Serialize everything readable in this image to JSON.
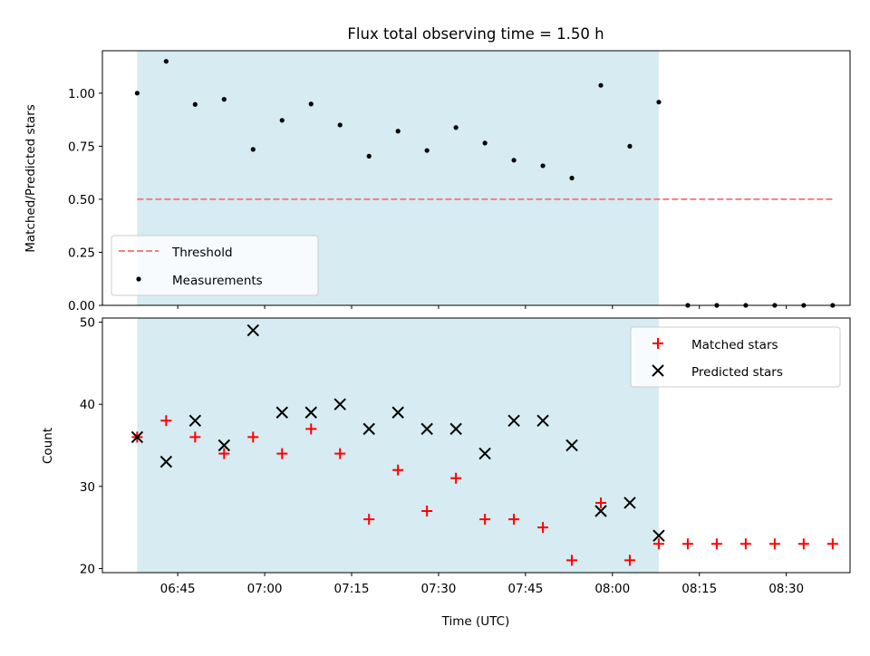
{
  "chart_data": [
    {
      "type": "scatter",
      "title": "Flux total observing time = 1.50 h",
      "ylabel": "Matched/Predicted stars",
      "xlabel": "",
      "ylim": [
        0,
        1.2
      ],
      "xlim": [
        "06:32",
        "08:41"
      ],
      "yticks": [
        0,
        0.25,
        0.5,
        0.75,
        1.0
      ],
      "ytick_labels": [
        "0.00",
        "0.25",
        "0.50",
        "0.75",
        "1.00"
      ],
      "shaded_span": [
        "06:38",
        "08:08"
      ],
      "shade_color": "#add8e6",
      "legend_location": "lower-left",
      "series": [
        {
          "name": "Threshold",
          "kind": "dashed-line",
          "color": "#f08080",
          "x": [
            "06:38",
            "08:38"
          ],
          "y": [
            0.5,
            0.5
          ]
        },
        {
          "name": "Measurements",
          "kind": "dot",
          "color": "#000000",
          "x": [
            "06:38",
            "06:43",
            "06:48",
            "06:53",
            "06:58",
            "07:03",
            "07:08",
            "07:13",
            "07:18",
            "07:23",
            "07:28",
            "07:33",
            "07:38",
            "07:43",
            "07:48",
            "07:53",
            "07:58",
            "08:03",
            "08:08",
            "08:13",
            "08:18",
            "08:23",
            "08:28",
            "08:33",
            "08:38"
          ],
          "y": [
            1.0,
            1.15,
            0.947,
            0.971,
            0.735,
            0.872,
            0.949,
            0.85,
            0.703,
            0.821,
            0.73,
            0.838,
            0.765,
            0.684,
            0.658,
            0.6,
            1.037,
            0.75,
            0.958,
            0,
            0,
            0,
            0,
            0,
            0
          ]
        }
      ]
    },
    {
      "type": "scatter",
      "title": "",
      "ylabel": "Count",
      "xlabel": "Time (UTC)",
      "ylim": [
        19.5,
        50.5
      ],
      "xlim": [
        "06:32",
        "08:41"
      ],
      "yticks": [
        20,
        30,
        40,
        50
      ],
      "ytick_labels": [
        "20",
        "30",
        "40",
        "50"
      ],
      "xticks": [
        "06:45",
        "07:00",
        "07:15",
        "07:30",
        "07:45",
        "08:00",
        "08:15",
        "08:30"
      ],
      "shaded_span": [
        "06:38",
        "08:08"
      ],
      "shade_color": "#add8e6",
      "legend_location": "upper-right",
      "series": [
        {
          "name": "Matched stars",
          "kind": "plus",
          "color": "#ff0000",
          "x": [
            "06:38",
            "06:43",
            "06:48",
            "06:53",
            "06:58",
            "07:03",
            "07:08",
            "07:13",
            "07:18",
            "07:23",
            "07:28",
            "07:33",
            "07:38",
            "07:43",
            "07:48",
            "07:53",
            "07:58",
            "08:03",
            "08:08",
            "08:13",
            "08:18",
            "08:23",
            "08:28",
            "08:33",
            "08:38"
          ],
          "y": [
            36,
            38,
            36,
            34,
            36,
            34,
            37,
            34,
            26,
            32,
            27,
            31,
            26,
            26,
            25,
            21,
            28,
            21,
            23,
            23,
            23,
            23,
            23,
            23,
            23
          ]
        },
        {
          "name": "Predicted stars",
          "kind": "x",
          "color": "#000000",
          "x": [
            "06:38",
            "06:43",
            "06:48",
            "06:53",
            "06:58",
            "07:03",
            "07:08",
            "07:13",
            "07:18",
            "07:23",
            "07:28",
            "07:33",
            "07:38",
            "07:43",
            "07:48",
            "07:53",
            "07:58",
            "08:03",
            "08:08"
          ],
          "y": [
            36,
            33,
            38,
            35,
            49,
            39,
            39,
            40,
            37,
            39,
            37,
            37,
            34,
            38,
            38,
            35,
            27,
            28,
            24
          ]
        }
      ]
    }
  ]
}
